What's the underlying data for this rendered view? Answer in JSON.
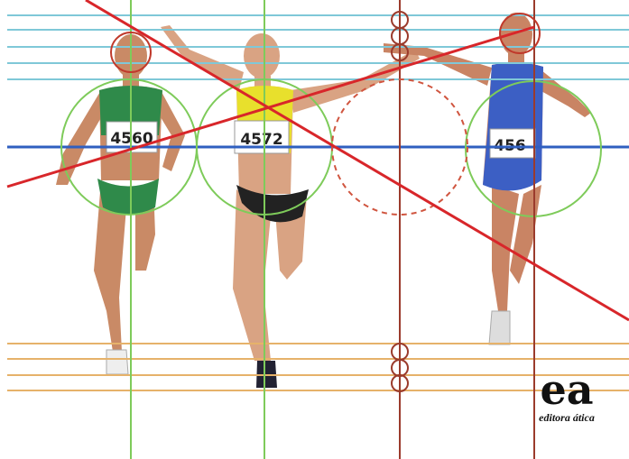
{
  "bibs": [
    "4560",
    "4572",
    "456"
  ],
  "logo": {
    "mark": "ea",
    "name": "editora ática"
  }
}
